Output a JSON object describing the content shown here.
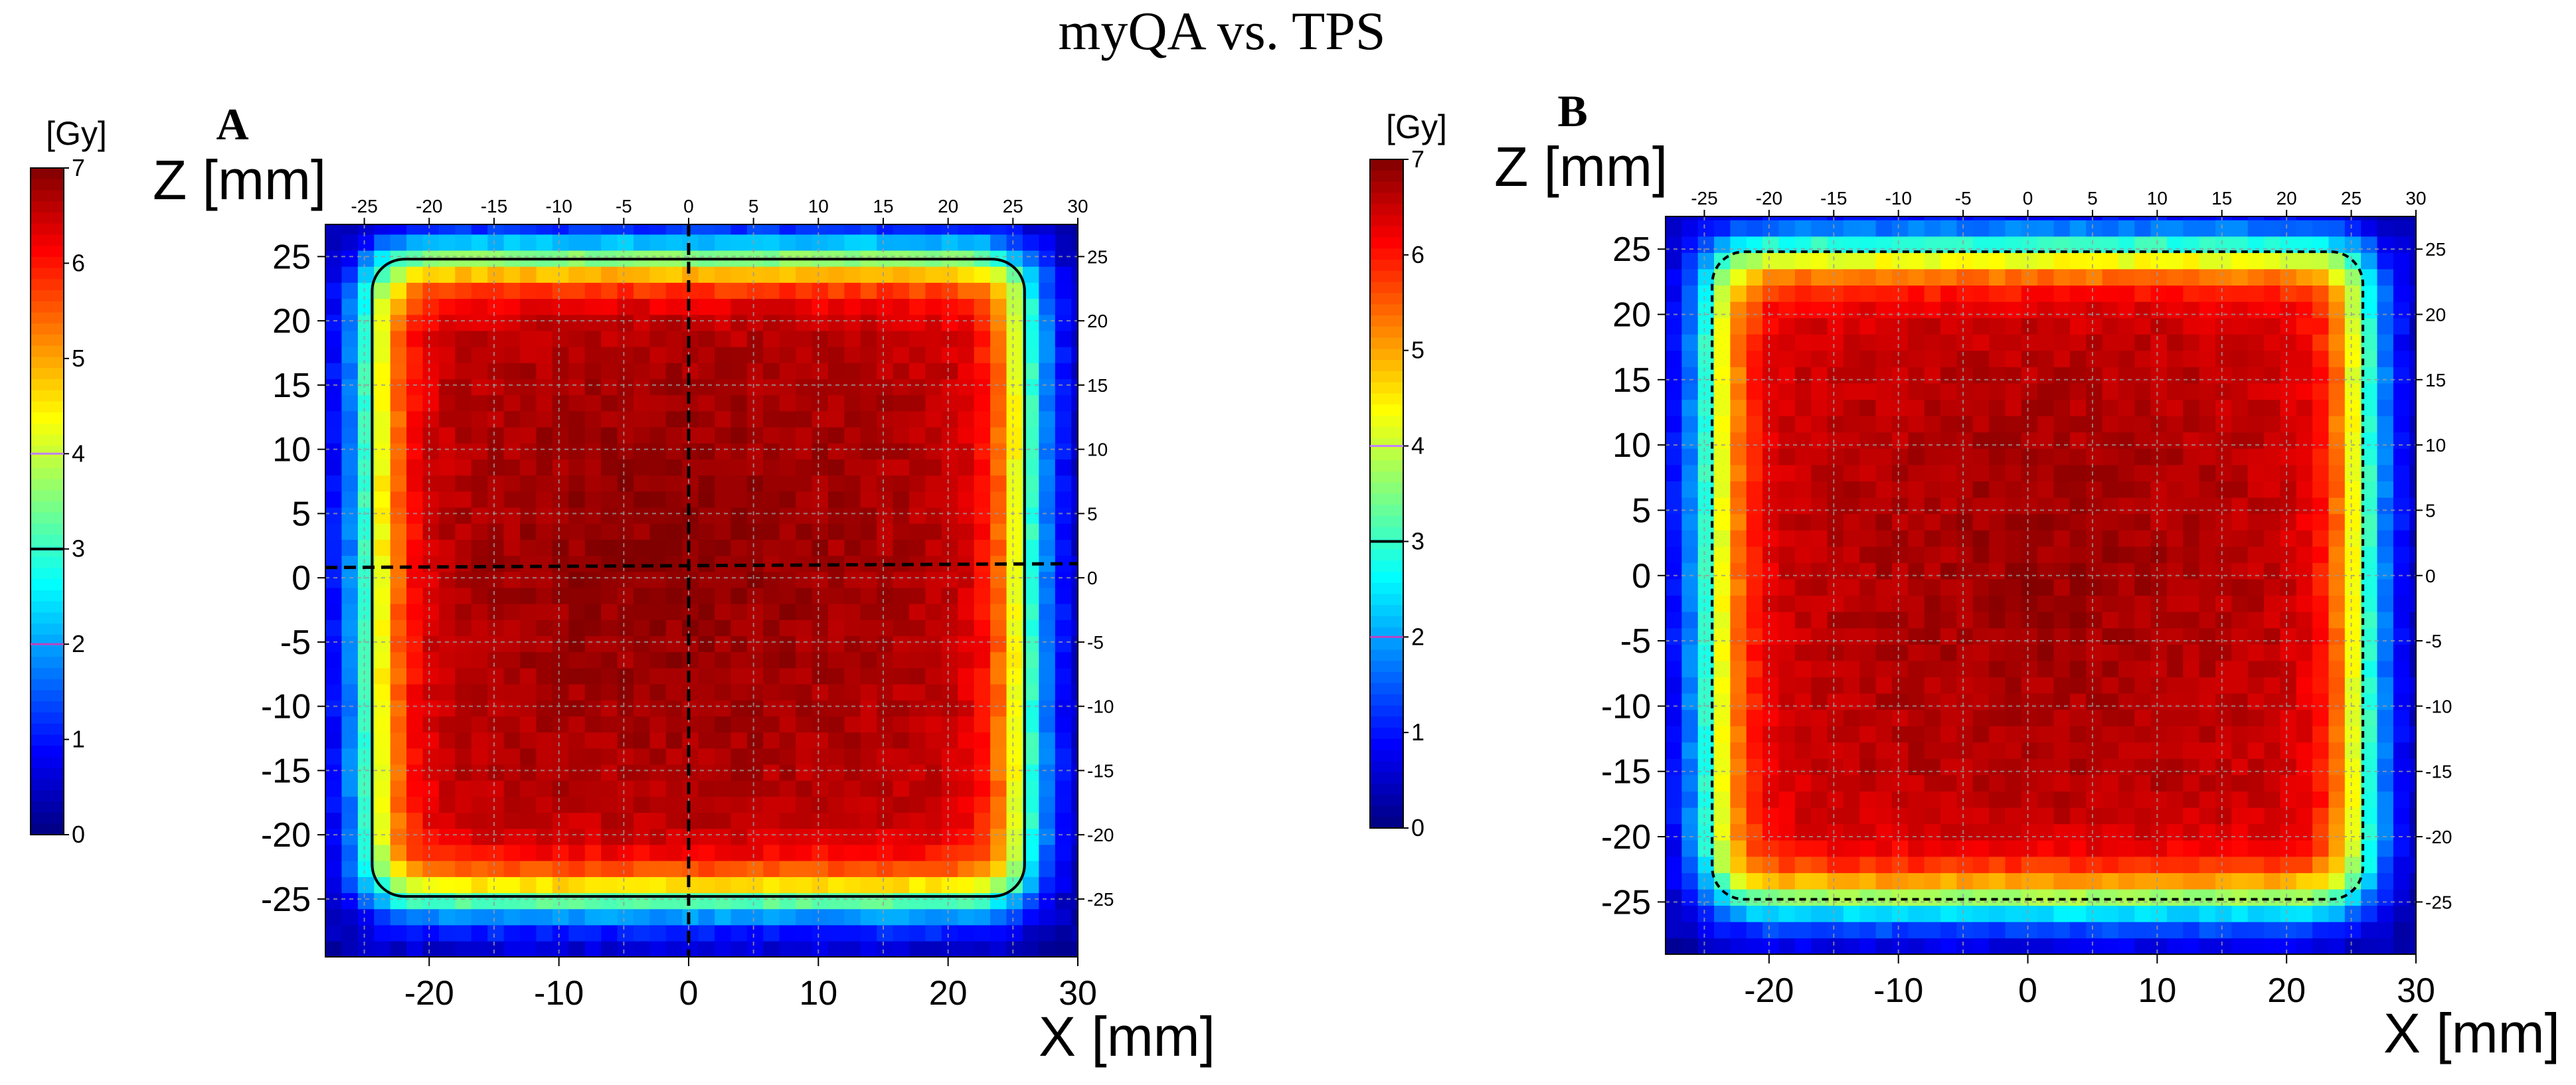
{
  "figure": {
    "title": "myQA vs. TPS"
  },
  "colors": {
    "jet": [
      "#000080",
      "#0000ff",
      "#0080ff",
      "#00ffff",
      "#80ff80",
      "#ffff00",
      "#ff8000",
      "#ff0000",
      "#800000"
    ],
    "grid": "#9a9a9a",
    "isoline": "#000000",
    "isoline_2gy": "#c040c0",
    "isoline_4gy": "#c080ff",
    "profile_line": "#000000"
  },
  "chart_data": [
    {
      "type": "heatmap",
      "panel_label": "A",
      "xlabel": "X [mm]",
      "ylabel": "Z [mm]",
      "xlim": [
        -28,
        30
      ],
      "ylim": [
        -29.5,
        27.5
      ],
      "x_ticks": [
        -20,
        -10,
        0,
        10,
        20,
        30
      ],
      "y_ticks": [
        25,
        20,
        15,
        10,
        5,
        0,
        -5,
        -10,
        -15,
        -20,
        -25
      ],
      "top_ticks": [
        -25,
        -20,
        -15,
        -10,
        -5,
        0,
        5,
        10,
        15,
        20,
        25,
        30
      ],
      "right_ticks": [
        25,
        20,
        15,
        10,
        5,
        0,
        -5,
        -10,
        -15,
        -20,
        -25
      ],
      "field": {
        "x_range": [
          -24.5,
          26
        ],
        "z_range": [
          -25,
          25
        ],
        "max_dose": 6.6,
        "hot_center": [
          -1,
          2
        ]
      },
      "grid": true,
      "isodose_line": {
        "dose": 3,
        "style": "solid"
      },
      "profile_lines": [
        {
          "orientation": "vertical",
          "x1": 0,
          "y1": 27.5,
          "x2": 0,
          "y2": -29.5
        },
        {
          "orientation": "horizontal",
          "x1": -28,
          "y1": 0.8,
          "x2": 30,
          "y2": 1.1
        }
      ],
      "colorbar": {
        "unit": "[Gy]",
        "min": 0,
        "max": 7,
        "ticks": [
          0,
          1,
          2,
          3,
          4,
          5,
          6,
          7
        ],
        "markers": [
          2,
          3,
          4
        ]
      }
    },
    {
      "type": "heatmap",
      "panel_label": "B",
      "xlabel": "X [mm]",
      "ylabel": "Z [mm]",
      "xlim": [
        -28,
        30
      ],
      "ylim": [
        -29,
        27.5
      ],
      "x_ticks": [
        -20,
        -10,
        0,
        10,
        20,
        30
      ],
      "y_ticks": [
        25,
        20,
        15,
        10,
        5,
        0,
        -5,
        -10,
        -15,
        -20,
        -25
      ],
      "top_ticks": [
        -25,
        -20,
        -15,
        -10,
        -5,
        0,
        5,
        10,
        15,
        20,
        25,
        30
      ],
      "right_ticks": [
        25,
        20,
        15,
        10,
        5,
        0,
        -5,
        -10,
        -15,
        -20,
        -25
      ],
      "field": {
        "x_range": [
          -24.5,
          26
        ],
        "z_range": [
          -25,
          25
        ],
        "max_dose": 6.5,
        "hot_center": [
          1,
          0
        ]
      },
      "grid": true,
      "isodose_line": {
        "dose": 3,
        "style": "dashed"
      },
      "profile_lines": [],
      "colorbar": {
        "unit": "[Gy]",
        "min": 0,
        "max": 7,
        "ticks": [
          0,
          1,
          2,
          3,
          4,
          5,
          6,
          7
        ],
        "markers": [
          2,
          3,
          4
        ]
      }
    }
  ]
}
